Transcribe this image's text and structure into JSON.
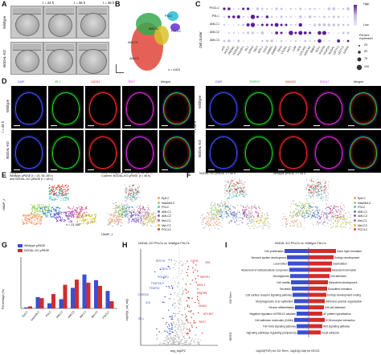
{
  "panel_labels": {
    "a": "A",
    "b": "B",
    "c": "C",
    "d": "D",
    "e": "E",
    "f": "F",
    "g": "G",
    "h": "H",
    "i": "I"
  },
  "panel_a": {
    "times": [
      "t = 24 h",
      "t = 36 h",
      "t = 48 h"
    ],
    "rows": [
      "Wildtype",
      "NODAL-KO"
    ]
  },
  "panel_b": {
    "clusters": [
      "PSLC",
      "PGCLC",
      "AMLC3",
      "AMLC2",
      "AMLC1"
    ],
    "n_label": "n = 4,823"
  },
  "panel_c": {
    "rows": [
      "PGCLC",
      "PSLC",
      "AMLC1",
      "AMLC2",
      "AMLC3"
    ],
    "ylabel": "Cell cluster",
    "genes": [
      "NANOG",
      "SOX17",
      "PRDM1",
      "TFAP2C",
      "POU5F1",
      "ISL1",
      "GATA3",
      "TBXT",
      "MIXL1",
      "CDX2",
      "HAND1",
      "GABRP",
      "TBX3",
      "VTCN1",
      "KRT7",
      "LUM",
      "DCN",
      "COL3A1",
      "HAPLN1",
      "BMP4",
      "DLK1",
      "POSTN",
      "TFAP2A",
      "NODAL",
      "LEFTY1",
      "LEFTY2",
      "GATA6"
    ],
    "color_legend": {
      "high": "High",
      "low": "Low"
    },
    "size_legend": {
      "title": "Percent expressed",
      "values": [
        "25",
        "50",
        "75",
        "100"
      ]
    }
  },
  "panel_d": {
    "left_titles": [
      "DAPI",
      "ISL1",
      "GATA3",
      "TBXT",
      "Merged"
    ],
    "right_titles": [
      "DAPI",
      "TFAP2C",
      "NANOG",
      "SOX17",
      "Merged"
    ],
    "time": "t = 48 h",
    "rows": [
      "Wildtype",
      "NODAL-KO"
    ]
  },
  "panel_e": {
    "header_left": "Integrated:\nWildtype µPASE (t = 24, 36, 48 h)\nand NODAL-KO µPASE (t = 48 h)",
    "header_right": "Grey: Wildtype µPASE (t = 24, 36, 48 h)\nColored: NODAL-KO µPASE (t = 48 h)",
    "n_label": "n = 23,156",
    "xlabel": "UMAP_1",
    "ylabel": "UMAP_2",
    "legend": [
      "EpiLC",
      "NasAMLC",
      "PSLC",
      "AMLC1",
      "AMLC2",
      "MeLC1",
      "MeLC2",
      "PGCLC"
    ]
  },
  "panel_f": {
    "titles": [
      "NODAL-KO µPASE, t = 48 h",
      "Wildtype µPASE, t = 48 h"
    ],
    "legend": [
      "EpiLC",
      "NasAMLC",
      "PSLC",
      "AMLC1",
      "AMLC2",
      "MeLC1",
      "MeLC2",
      "PGCLC"
    ]
  },
  "panel_g": {
    "legend": [
      "Wildtype µPASE",
      "NODAL-KO µPASE"
    ],
    "ylabel": "Percentage (%)"
  },
  "panel_h": {
    "title": "NODAL-KO PSLCs vs. Wildtype PSLCs",
    "xlabel": "avg_log2FC",
    "ylabel": "-log10(p_val_adj)",
    "genes_left": [
      "KRT19",
      "CDH1",
      "POU5F1",
      "TFAP2A",
      "TFAP2C",
      "CLDN10",
      "ISL1",
      "ID4"
    ],
    "genes_right": [
      "CDH2",
      "VIM",
      "MESP1",
      "MIXL1",
      "WNT5B",
      "SNAI2",
      "APLNR",
      "TBXT"
    ]
  },
  "panel_i": {
    "title": "NODAL-KO PSLCs vs. Wildtype PSLCs",
    "go_label": "GO Term",
    "kegg_label": "KEGG",
    "xlabel": "-log10(FDR) for GO Term, -log10(p-Val) for KEGG",
    "left_terms": [
      "Cell proliferation",
      "Nervous system development",
      "Locomotion",
      "Movement of cell/subcellular component",
      "Neurogenesis",
      "Cell motility",
      "Secretion",
      "Cell surface receptor signaling pathway",
      "Morphogenesis of an epithelium",
      "Neuron differentiation",
      "Negative regulation of ERK1/2 cascade",
      "Cell adhesion molecules (CAMs)",
      "TGF-beta signaling pathway",
      "Signaling pathways regulating pluripotency"
    ],
    "right_terms": [
      "Germ layer formation",
      "Embryo development",
      "Gastrulation",
      "Mesoderm formation",
      "Cell adhesion",
      "Mesoderm development",
      "Endoderm formation",
      "Embryo development ending",
      "Adherens junction organization",
      "Cell-cell adhesion",
      "AP pattern specification",
      "ECM-receptor interaction",
      "Wnt signaling pathway",
      "Focal adhesion"
    ]
  },
  "colors": {
    "blue": "#3a4fd1",
    "red": "#d42b2b",
    "purple": "#5a1f8f",
    "cyan_b": "#38c0d8",
    "green_b": "#3aa84f",
    "yellow_b": "#d8c22a",
    "red_b": "#e0453a"
  }
}
